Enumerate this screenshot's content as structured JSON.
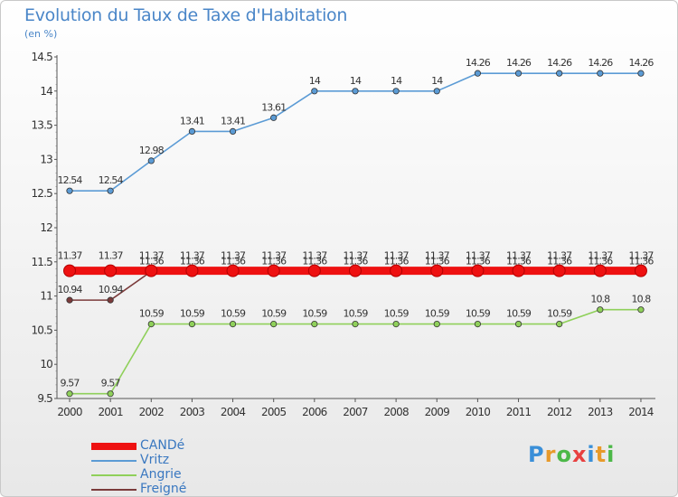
{
  "header": {
    "title": "Evolution du Taux de Taxe d'Habitation",
    "unit": "(en %)"
  },
  "logo": {
    "text": "Proxiti",
    "colors": [
      "#3a8fd8",
      "#e89a2a",
      "#4cb848",
      "#e84040",
      "#3a8fd8",
      "#e89a2a",
      "#4cb848"
    ]
  },
  "chart_data": {
    "type": "line",
    "x": [
      "2000",
      "2001",
      "2002",
      "2003",
      "2004",
      "2005",
      "2006",
      "2007",
      "2008",
      "2009",
      "2010",
      "2011",
      "2012",
      "2013",
      "2014"
    ],
    "ylim": [
      9.5,
      14.5
    ],
    "yticks": [
      "9.5",
      "10",
      "10.5",
      "11",
      "11.5",
      "12",
      "12.5",
      "13",
      "13.5",
      "14",
      "14.5"
    ],
    "xlabel": "",
    "ylabel": "",
    "grid": false,
    "legend_position": "bottom-left",
    "series": [
      {
        "name": "Vritz",
        "color": "#5b9bd5",
        "values": [
          12.54,
          12.54,
          12.98,
          13.41,
          13.41,
          13.61,
          14,
          14,
          14,
          14,
          14.26,
          14.26,
          14.26,
          14.26,
          14.26
        ],
        "labels": [
          "12.54",
          "12.54",
          "12.98",
          "13.41",
          "13.41",
          "13.61",
          "14",
          "14",
          "14",
          "14",
          "14.26",
          "14.26",
          "14.26",
          "14.26",
          "14.26"
        ]
      },
      {
        "name": "Angrie",
        "color": "#8fd05a",
        "values": [
          9.57,
          9.57,
          10.59,
          10.59,
          10.59,
          10.59,
          10.59,
          10.59,
          10.59,
          10.59,
          10.59,
          10.59,
          10.59,
          10.8,
          10.8
        ],
        "labels": [
          "9.57",
          "9.57",
          "10.59",
          "10.59",
          "10.59",
          "10.59",
          "10.59",
          "10.59",
          "10.59",
          "10.59",
          "10.59",
          "10.59",
          "10.59",
          "10.8",
          "10.8"
        ]
      },
      {
        "name": "Freigné",
        "color": "#7b3b3b",
        "values": [
          10.94,
          10.94,
          11.36,
          11.36,
          11.36,
          11.36,
          11.36,
          11.36,
          11.36,
          11.36,
          11.36,
          11.36,
          11.36,
          11.36,
          11.36
        ],
        "labels": [
          "10.94",
          "10.94",
          "11.36",
          "11.36",
          "11.36",
          "11.36",
          "11.36",
          "11.36",
          "11.36",
          "11.36",
          "11.36",
          "11.36",
          "11.36",
          "11.36",
          "11.36"
        ]
      },
      {
        "name": "CANDé",
        "color": "#ee1111",
        "values": [
          11.37,
          11.37,
          11.37,
          11.37,
          11.37,
          11.37,
          11.37,
          11.37,
          11.37,
          11.37,
          11.37,
          11.37,
          11.37,
          11.37,
          11.37
        ],
        "labels": [
          "11.37",
          "11.37",
          "11.37",
          "11.37",
          "11.37",
          "11.37",
          "11.37",
          "11.37",
          "11.37",
          "11.37",
          "11.37",
          "11.37",
          "11.37",
          "11.37",
          "11.37"
        ]
      }
    ],
    "legend_order": [
      3,
      0,
      1,
      2
    ]
  }
}
